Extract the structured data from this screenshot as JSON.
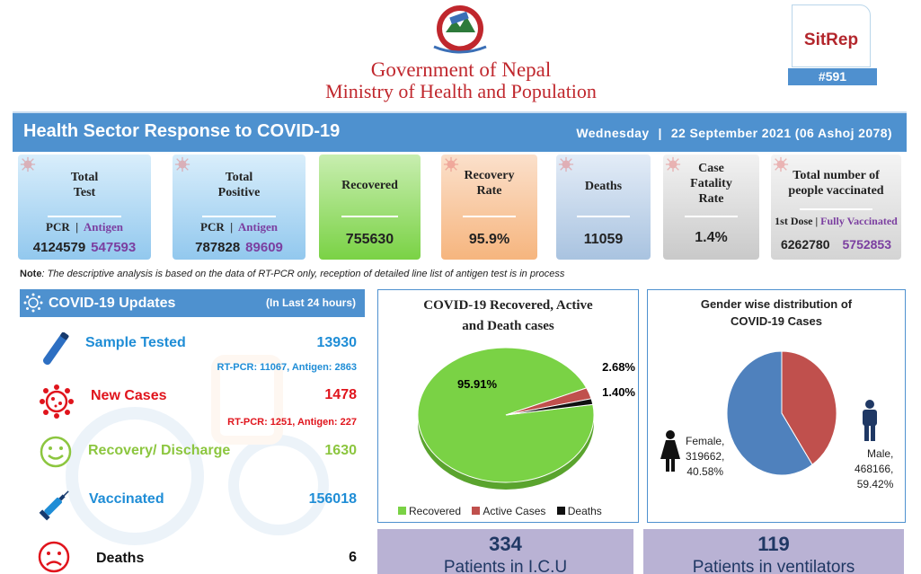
{
  "header": {
    "gov_line1": "Government of Nepal",
    "gov_line2": "Ministry of Health and Population",
    "sitrep": "SitRep",
    "sitrep_number": "#591"
  },
  "title_bar": {
    "title": "Health Sector Response to COVID-19",
    "day": "Wednesday",
    "separator": "|",
    "date": "22  September 2021 (06 Ashoj 2078)"
  },
  "cards": {
    "total_test": {
      "label_line1": "Total",
      "label_line2": "Test",
      "pcr_label": "PCR",
      "sep": "|",
      "antigen_label": "Antigen",
      "pcr_value": "4124579",
      "antigen_value": "547593"
    },
    "total_positive": {
      "label_line1": "Total",
      "label_line2": "Positive",
      "pcr_label": "PCR",
      "sep": "|",
      "antigen_label": "Antigen",
      "pcr_value": "787828",
      "antigen_value": "89609"
    },
    "recovered": {
      "label": "Recovered",
      "value": "755630"
    },
    "recovery_rate": {
      "label_line1": "Recovery",
      "label_line2": "Rate",
      "value": "95.9%"
    },
    "deaths": {
      "label": "Deaths",
      "value": "11059"
    },
    "cfr": {
      "label_line1": "Case",
      "label_line2": "Fatality",
      "label_line3": "Rate",
      "value": "1.4%"
    },
    "vaccinated": {
      "label_line1": "Total number of",
      "label_line2": "people vaccinated",
      "dose1_label": "1st Dose",
      "sep": "|",
      "full_label": "Fully Vaccinated",
      "dose1_value": "6262780",
      "full_value": "5752853"
    }
  },
  "note": {
    "bold": "Note",
    "text": ": The descriptive analysis is based on the data of RT-PCR only, reception of detailed line list of antigen test is in process"
  },
  "updates": {
    "title": "COVID-19 Updates",
    "subtitle": "(In Last 24 hours)",
    "rows": [
      {
        "label": "Sample Tested",
        "value": "13930",
        "detail": "RT-PCR: 11067, Antigen: 2863",
        "color": "#1f8dd6"
      },
      {
        "label": "New Cases",
        "value": "1478",
        "detail": "RT-PCR: 1251, Antigen: 227",
        "color": "#e0141c"
      },
      {
        "label": "Recovery/ Discharge",
        "value": "1630",
        "detail": "",
        "color": "#8cc63f"
      },
      {
        "label": "Vaccinated",
        "value": "156018",
        "detail": "",
        "color": "#1f8dd6"
      },
      {
        "label": "Deaths",
        "value": "6",
        "detail": "",
        "color": "#111111"
      }
    ]
  },
  "chart_data": [
    {
      "type": "pie",
      "title": "COVID-19 Recovered, Active and Death cases",
      "labels": [
        "Recovered",
        "Active Cases",
        "Deaths"
      ],
      "values": [
        95.91,
        2.68,
        1.4
      ],
      "value_labels": [
        "95.91%",
        "2.68%",
        "1.40%"
      ],
      "colors": [
        "#7ad245",
        "#c0504d",
        "#111111"
      ],
      "legend": "bottom"
    },
    {
      "type": "pie",
      "title": "Gender wise distribution of COVID-19 Cases",
      "labels": [
        "Female",
        "Male"
      ],
      "counts": [
        319662,
        468166
      ],
      "values": [
        40.58,
        59.42
      ],
      "value_labels": [
        "Female,\n319662,\n40.58%",
        "Male,\n468166,\n59.42%"
      ],
      "colors": [
        "#c0504d",
        "#4f81bd"
      ]
    }
  ],
  "panels": {
    "pie1_title_line1": "COVID-19 Recovered, Active",
    "pie1_title_line2": "and Death cases",
    "pie2_title_line1": "Gender wise distribution of",
    "pie2_title_line2": "COVID-19 Cases",
    "female_lines": [
      "Female,",
      "319662,",
      "40.58%"
    ],
    "male_lines": [
      "Male,",
      "468166,",
      "59.42%"
    ]
  },
  "bottom": {
    "icu_value": "334",
    "icu_label": "Patients in I.C.U",
    "vent_value": "119",
    "vent_label": "Patients in ventilators"
  }
}
